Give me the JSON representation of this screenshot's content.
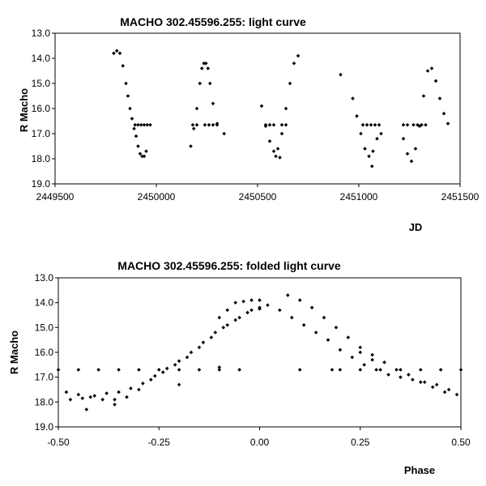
{
  "chart_data": [
    {
      "type": "scatter",
      "title": "MACHO 302.45596.255: light curve",
      "xlabel": "JD",
      "ylabel": "R Macho",
      "xlim": [
        2449500,
        2451500
      ],
      "ylim": [
        13.0,
        19.0
      ],
      "y_inverted": true,
      "grid": false,
      "x_ticks": [
        "2449500",
        "2450000",
        "2450500",
        "2451000",
        "2451500"
      ],
      "y_ticks": [
        "13.0",
        "14.0",
        "15.0",
        "16.0",
        "17.0",
        "18.0",
        "19.0"
      ],
      "series": [
        {
          "marker": "diamond",
          "segments": [
            {
              "x": [
                2449790,
                2449805,
                2449820,
                2449835,
                2449850,
                2449860,
                2449870,
                2449880,
                2449890,
                2449900,
                2449910,
                2449920,
                2449930,
                2449940,
                2449950
              ],
              "y": [
                13.8,
                13.7,
                13.8,
                14.3,
                15.0,
                15.5,
                16.0,
                16.4,
                16.8,
                17.1,
                17.5,
                17.8,
                17.9,
                17.9,
                17.7
              ]
            },
            {
              "x": [
                2449895,
                2449910,
                2449925,
                2449940,
                2449955,
                2449970
              ],
              "y": [
                16.65,
                16.65,
                16.65,
                16.65,
                16.65,
                16.65
              ]
            },
            {
              "x": [
                2450170,
                2450185,
                2450200,
                2450215,
                2450225,
                2450235,
                2450245,
                2450255,
                2450265,
                2450280,
                2450300
              ],
              "y": [
                17.5,
                16.8,
                16.0,
                15.0,
                14.4,
                14.2,
                14.2,
                14.4,
                15.0,
                15.8,
                16.6
              ]
            },
            {
              "x": [
                2450180,
                2450200,
                2450240,
                2450260,
                2450280,
                2450300
              ],
              "y": [
                16.65,
                16.65,
                16.65,
                16.65,
                16.65,
                16.65
              ]
            },
            {
              "x": [
                2450335
              ],
              "y": [
                17.0
              ]
            },
            {
              "x": [
                2450520,
                2450540,
                2450560,
                2450580,
                2450600,
                2450620,
                2450640,
                2450660,
                2450680,
                2450700
              ],
              "y": [
                15.9,
                16.7,
                17.3,
                17.7,
                17.6,
                17.0,
                16.0,
                15.0,
                14.2,
                13.9
              ]
            },
            {
              "x": [
                2450540,
                2450560,
                2450580,
                2450620,
                2450640
              ],
              "y": [
                16.65,
                16.65,
                16.65,
                16.65,
                16.65
              ]
            },
            {
              "x": [
                2450590,
                2450610
              ],
              "y": [
                17.9,
                17.95
              ]
            },
            {
              "x": [
                2450910
              ],
              "y": [
                14.65
              ]
            },
            {
              "x": [
                2450970,
                2450990,
                2451010,
                2451030,
                2451050,
                2451070,
                2451090
              ],
              "y": [
                15.6,
                16.3,
                17.0,
                17.6,
                17.9,
                17.7,
                17.2
              ]
            },
            {
              "x": [
                2451020,
                2451040,
                2451060,
                2451080,
                2451100
              ],
              "y": [
                16.65,
                16.65,
                16.65,
                16.65,
                16.65
              ]
            },
            {
              "x": [
                2451065
              ],
              "y": [
                18.3
              ]
            },
            {
              "x": [
                2451110
              ],
              "y": [
                17.0
              ]
            },
            {
              "x": [
                2451220,
                2451240,
                2451260,
                2451280,
                2451300,
                2451320,
                2451340,
                2451360,
                2451380,
                2451400,
                2451420,
                2451440
              ],
              "y": [
                17.2,
                17.8,
                18.1,
                17.6,
                16.7,
                15.5,
                14.5,
                14.4,
                14.9,
                15.6,
                16.2,
                16.6
              ]
            },
            {
              "x": [
                2451220,
                2451240,
                2451270,
                2451290,
                2451310,
                2451330
              ],
              "y": [
                16.65,
                16.65,
                16.65,
                16.65,
                16.65,
                16.65
              ]
            }
          ]
        }
      ]
    },
    {
      "type": "scatter",
      "title": "MACHO 302.45596.255: folded light curve",
      "xlabel": "Phase",
      "ylabel": "R Macho",
      "xlim": [
        -0.5,
        0.5
      ],
      "ylim": [
        13.0,
        19.0
      ],
      "y_inverted": true,
      "grid": false,
      "x_ticks": [
        "-0.50",
        "-0.25",
        "0.00",
        "0.25",
        "0.50"
      ],
      "y_ticks": [
        "13.0",
        "14.0",
        "15.0",
        "16.0",
        "17.0",
        "18.0",
        "19.0"
      ],
      "series": [
        {
          "marker": "diamond",
          "segments": [
            {
              "x": [
                -0.48,
                -0.45,
                -0.42,
                -0.39,
                -0.36,
                -0.33,
                -0.3,
                -0.27,
                -0.24,
                -0.21,
                -0.18,
                -0.15,
                -0.12,
                -0.09,
                -0.06,
                -0.03,
                0.0
              ],
              "y": [
                17.6,
                17.7,
                17.8,
                17.9,
                17.9,
                17.8,
                17.5,
                17.1,
                16.8,
                16.5,
                16.2,
                15.8,
                15.4,
                15.0,
                14.7,
                14.4,
                14.2
              ]
            },
            {
              "x": [
                -0.47,
                -0.44,
                -0.41,
                -0.38,
                -0.35,
                -0.32,
                -0.29,
                -0.26,
                -0.23,
                -0.2,
                -0.17,
                -0.14,
                -0.11,
                -0.08,
                -0.05,
                -0.02,
                0.0
              ],
              "y": [
                17.9,
                17.85,
                17.75,
                17.65,
                17.6,
                17.45,
                17.25,
                16.95,
                16.65,
                16.35,
                16.0,
                15.6,
                15.2,
                14.9,
                14.6,
                14.3,
                14.25
              ]
            },
            {
              "x": [
                -0.1,
                -0.08,
                -0.06,
                -0.04,
                -0.02,
                0.0
              ],
              "y": [
                14.6,
                14.3,
                14.0,
                13.95,
                13.9,
                13.9
              ]
            },
            {
              "x": [
                0.02,
                0.05,
                0.08,
                0.11,
                0.14,
                0.17,
                0.2,
                0.23,
                0.26,
                0.29,
                0.32,
                0.35,
                0.38,
                0.41,
                0.44,
                0.47,
                0.49
              ],
              "y": [
                14.1,
                14.3,
                14.6,
                14.9,
                15.2,
                15.5,
                15.9,
                16.2,
                16.5,
                16.7,
                16.9,
                17.0,
                17.1,
                17.2,
                17.3,
                17.5,
                17.7
              ]
            },
            {
              "x": [
                0.07,
                0.1,
                0.13,
                0.16,
                0.19,
                0.22,
                0.25,
                0.28,
                0.31,
                0.34,
                0.37,
                0.4,
                0.43,
                0.46
              ],
              "y": [
                13.7,
                13.9,
                14.2,
                14.6,
                15.0,
                15.4,
                15.8,
                16.1,
                16.4,
                16.7,
                16.9,
                17.2,
                17.4,
                17.6
              ]
            },
            {
              "x": [
                -0.5,
                -0.45,
                -0.4,
                -0.35,
                -0.3,
                -0.25,
                -0.2,
                -0.15,
                -0.1,
                -0.05,
                0.2,
                0.25,
                0.3,
                0.35,
                0.4,
                0.45,
                0.5
              ],
              "y": [
                16.7,
                16.7,
                16.7,
                16.7,
                16.7,
                16.7,
                16.7,
                16.7,
                16.7,
                16.7,
                16.7,
                16.7,
                16.7,
                16.7,
                16.7,
                16.7,
                16.7
              ]
            },
            {
              "x": [
                0.1,
                0.18,
                0.25,
                0.28
              ],
              "y": [
                16.7,
                16.7,
                16.0,
                16.3
              ]
            },
            {
              "x": [
                -0.43,
                -0.36,
                -0.2,
                -0.1
              ],
              "y": [
                18.3,
                18.1,
                17.3,
                16.6
              ]
            }
          ]
        }
      ]
    }
  ]
}
